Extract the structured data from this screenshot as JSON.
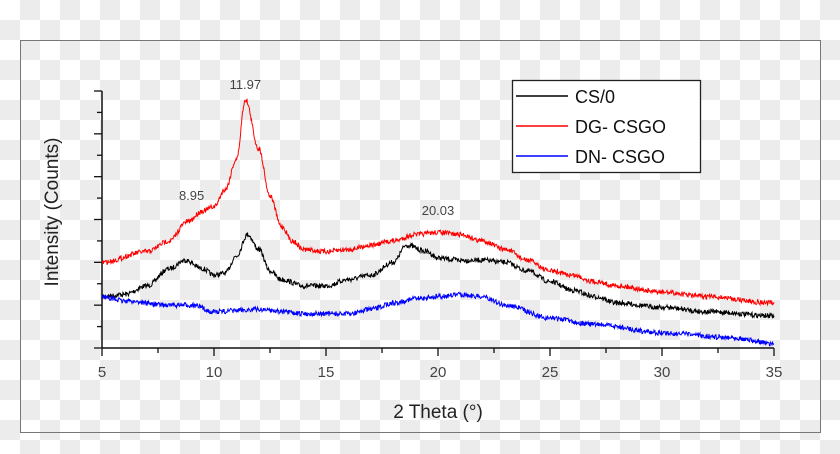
{
  "chart_data": {
    "type": "line",
    "xlabel": "2 Theta (°)",
    "ylabel": "Intensity (Counts)",
    "xlim": [
      5,
      35
    ],
    "ylim": [
      0,
      12
    ],
    "x_ticks": [
      "5",
      "10",
      "15",
      "20",
      "25",
      "30",
      "35"
    ],
    "y_tick_labels_shown": false,
    "grid": false,
    "legend_position": "top-right",
    "series": [
      {
        "name": "CS/0",
        "color": "#000000",
        "x": [
          5,
          6,
          7,
          8,
          8.7,
          9.5,
          10,
          10.5,
          11,
          11.5,
          12,
          12.5,
          13,
          14,
          15,
          16,
          17,
          18,
          18.6,
          19.5,
          20,
          21,
          22,
          23,
          24,
          25,
          26,
          27,
          28,
          30,
          32,
          35
        ],
        "y": [
          2.4,
          2.5,
          2.9,
          3.7,
          4.1,
          3.7,
          3.4,
          3.5,
          4.3,
          5.3,
          4.6,
          3.6,
          3.2,
          2.9,
          2.9,
          3.2,
          3.4,
          4.0,
          4.8,
          4.5,
          4.2,
          4.1,
          4.1,
          4.0,
          3.6,
          3.1,
          2.7,
          2.4,
          2.1,
          1.9,
          1.7,
          1.5
        ]
      },
      {
        "name": "DG- CSGO",
        "color": "#ff0000",
        "x": [
          5,
          7,
          8,
          8.8,
          9.5,
          10,
          10.5,
          11,
          11.4,
          12,
          12.5,
          13,
          13.5,
          14,
          15,
          16,
          17,
          18,
          19,
          20,
          21,
          22,
          23,
          24,
          25,
          26,
          27,
          28,
          30,
          32,
          35
        ],
        "y": [
          4.0,
          4.5,
          5.0,
          5.9,
          6.4,
          6.6,
          7.4,
          8.8,
          11.6,
          9.3,
          7.1,
          5.7,
          5.0,
          4.6,
          4.5,
          4.6,
          4.8,
          5.0,
          5.3,
          5.4,
          5.3,
          5.0,
          4.6,
          4.1,
          3.6,
          3.4,
          3.1,
          2.9,
          2.6,
          2.4,
          2.1
        ]
      },
      {
        "name": "DN- CSGO",
        "color": "#0000ff",
        "x": [
          5,
          6,
          8,
          9,
          10,
          12,
          14,
          15,
          16,
          17,
          18,
          19,
          20,
          21,
          22,
          23,
          25,
          27,
          30,
          33,
          35
        ],
        "y": [
          2.4,
          2.2,
          2.0,
          2.0,
          1.7,
          1.8,
          1.6,
          1.6,
          1.6,
          1.8,
          2.1,
          2.3,
          2.4,
          2.5,
          2.4,
          2.0,
          1.4,
          1.1,
          0.7,
          0.5,
          0.2
        ]
      }
    ],
    "annotations": [
      {
        "text": "11.97",
        "x": 11.4,
        "y": 12.1
      },
      {
        "text": "8.95",
        "x": 9.0,
        "y": 6.9
      },
      {
        "text": "20.03",
        "x": 20.0,
        "y": 6.2
      }
    ]
  }
}
